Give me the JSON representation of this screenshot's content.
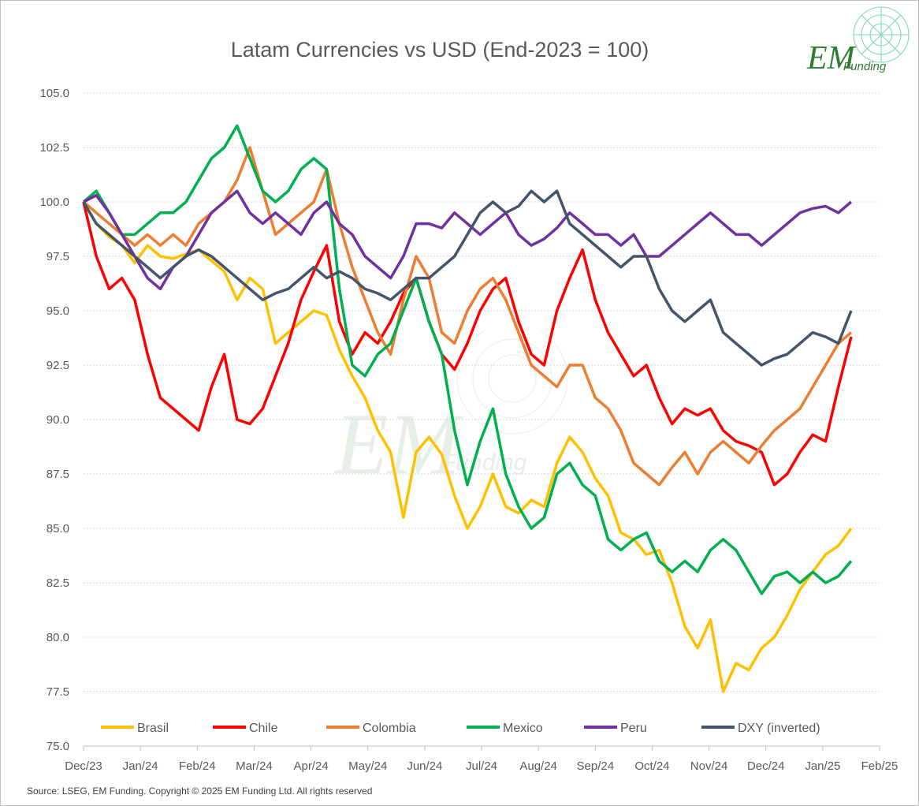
{
  "chart_data": {
    "type": "line",
    "title": "Latam Currencies vs USD (End-2023 = 100)",
    "source": "Source: LSEG, EM Funding.  Copyright © 2025 EM Funding Ltd. All rights reserved",
    "logo": {
      "text": "EM",
      "sub": "Funding"
    },
    "ylim": [
      75,
      105
    ],
    "yticks": [
      "75.0",
      "77.5",
      "80.0",
      "82.5",
      "85.0",
      "87.5",
      "90.0",
      "92.5",
      "95.0",
      "97.5",
      "100.0",
      "102.5",
      "105.0"
    ],
    "xticks": [
      "Dec/23",
      "Jan/24",
      "Feb/24",
      "Mar/24",
      "Apr/24",
      "May/24",
      "Jun/24",
      "Jul/24",
      "Aug/24",
      "Sep/24",
      "Oct/24",
      "Nov/24",
      "Dec/24",
      "Jan/25",
      "Feb/25"
    ],
    "grid": true,
    "legend_position": "bottom",
    "series": [
      {
        "name": "Brasil",
        "color": "#ffc000",
        "values": [
          100,
          99.0,
          98.4,
          98.0,
          97.2,
          98.0,
          97.5,
          97.4,
          97.6,
          97.8,
          97.3,
          96.8,
          95.5,
          96.5,
          96.0,
          93.5,
          94.0,
          94.5,
          95.0,
          94.8,
          93.2,
          92.0,
          91.0,
          89.5,
          88.5,
          85.5,
          88.5,
          89.2,
          88.4,
          86.5,
          85.0,
          86.0,
          87.5,
          86.0,
          85.7,
          86.3,
          86.0,
          88.0,
          89.2,
          88.5,
          87.3,
          86.5,
          84.8,
          84.5,
          83.8,
          84.0,
          82.5,
          80.5,
          79.5,
          80.8,
          77.5,
          78.8,
          78.5,
          79.5,
          80.0,
          81.0,
          82.2,
          83.0,
          83.8,
          84.2,
          85.0
        ]
      },
      {
        "name": "Chile",
        "color": "#ff0000",
        "values": [
          100,
          97.5,
          96.0,
          96.5,
          95.5,
          93.0,
          91.0,
          90.5,
          90.0,
          89.5,
          91.5,
          93.0,
          90.0,
          89.8,
          90.5,
          92.0,
          93.5,
          95.5,
          96.8,
          98.0,
          94.5,
          93.0,
          94.0,
          93.5,
          94.5,
          95.8,
          96.5,
          94.5,
          93.0,
          92.3,
          93.5,
          95.0,
          96.0,
          96.5,
          94.5,
          93.0,
          92.5,
          95.0,
          96.5,
          97.8,
          95.5,
          94.0,
          93.0,
          92.0,
          92.5,
          91.0,
          89.8,
          90.5,
          90.2,
          90.5,
          89.5,
          89.0,
          88.8,
          88.5,
          87.0,
          87.5,
          88.5,
          89.3,
          89.0,
          91.5,
          93.8
        ]
      },
      {
        "name": "Colombia",
        "color": "#ed7d31",
        "values": [
          100,
          99.5,
          99.0,
          98.5,
          98.0,
          98.5,
          98.0,
          98.5,
          98.0,
          99.0,
          99.5,
          100.0,
          101.0,
          102.5,
          100.5,
          98.5,
          99.0,
          99.5,
          100.0,
          101.5,
          99.0,
          97.0,
          95.5,
          94.0,
          93.0,
          95.5,
          97.5,
          96.5,
          94.0,
          93.5,
          95.0,
          96.0,
          96.5,
          95.5,
          94.0,
          92.5,
          92.0,
          91.5,
          92.5,
          92.5,
          91.0,
          90.5,
          89.5,
          88.0,
          87.5,
          87.0,
          87.8,
          88.5,
          87.5,
          88.5,
          89.0,
          88.5,
          88.0,
          88.8,
          89.5,
          90.0,
          90.5,
          91.5,
          92.5,
          93.5,
          94.0
        ]
      },
      {
        "name": "Mexico",
        "color": "#00b050",
        "values": [
          100,
          100.5,
          99.5,
          98.5,
          98.5,
          99.0,
          99.5,
          99.5,
          100.0,
          101.0,
          102.0,
          102.5,
          103.5,
          102.0,
          100.5,
          100.0,
          100.5,
          101.5,
          102.0,
          101.5,
          96.0,
          92.5,
          92.0,
          93.0,
          93.5,
          95.0,
          96.5,
          94.5,
          93.0,
          89.5,
          87.0,
          89.0,
          90.5,
          87.5,
          86.0,
          85.0,
          85.5,
          87.5,
          88.0,
          87.0,
          86.5,
          84.5,
          84.0,
          84.5,
          84.8,
          83.5,
          83.0,
          83.5,
          83.0,
          84.0,
          84.5,
          84.0,
          83.0,
          82.0,
          82.8,
          83.0,
          82.5,
          83.0,
          82.5,
          82.8,
          83.5
        ]
      },
      {
        "name": "Peru",
        "color": "#7030a0",
        "values": [
          100,
          100.3,
          99.5,
          98.5,
          97.5,
          96.5,
          96.0,
          97.0,
          97.5,
          98.5,
          99.5,
          100.0,
          100.5,
          99.5,
          99.0,
          99.5,
          99.0,
          98.5,
          99.5,
          100.0,
          99.0,
          98.5,
          97.5,
          97.0,
          96.5,
          97.5,
          99.0,
          99.0,
          98.8,
          99.5,
          99.0,
          98.5,
          99.0,
          99.5,
          98.5,
          98.0,
          98.3,
          98.8,
          99.5,
          99.0,
          98.5,
          98.5,
          98.0,
          98.5,
          97.5,
          97.5,
          98.0,
          98.5,
          99.0,
          99.5,
          99.0,
          98.5,
          98.5,
          98.0,
          98.5,
          99.0,
          99.5,
          99.7,
          99.8,
          99.5,
          100.0
        ]
      },
      {
        "name": "DXY (inverted)",
        "color": "#44546a",
        "values": [
          100,
          99.0,
          98.5,
          98.0,
          97.5,
          97.0,
          96.5,
          97.0,
          97.5,
          97.8,
          97.5,
          97.0,
          96.5,
          96.0,
          95.5,
          95.8,
          96.0,
          96.5,
          97.0,
          96.5,
          96.8,
          96.5,
          96.0,
          95.8,
          95.5,
          96.0,
          96.5,
          96.5,
          97.0,
          97.5,
          98.5,
          99.5,
          100.0,
          99.5,
          99.8,
          100.5,
          100.0,
          100.5,
          99.0,
          98.5,
          98.0,
          97.5,
          97.0,
          97.5,
          97.5,
          96.0,
          95.0,
          94.5,
          95.0,
          95.5,
          94.0,
          93.5,
          93.0,
          92.5,
          92.8,
          93.0,
          93.5,
          94.0,
          93.8,
          93.5,
          95.0
        ]
      }
    ]
  }
}
